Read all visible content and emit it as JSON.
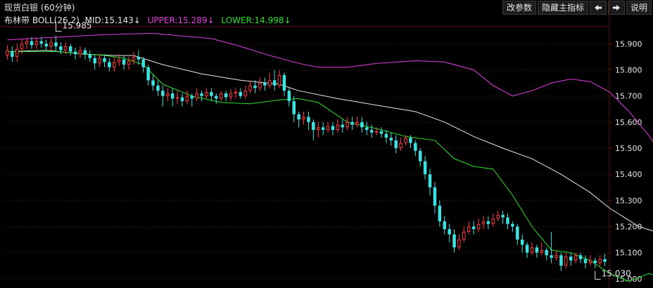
{
  "title": "现货白银 (60分钟)",
  "legend": {
    "indicator": "布林带",
    "params": "BOLL(26,2)",
    "mid": "MID:15.143↓",
    "upper": "UPPER:15.289↓",
    "lower": "LOWER:14.998↓"
  },
  "toolbar": {
    "modify_params": "改参数",
    "hide_indicator": "隐藏主指标",
    "prev_icon": "arrow-left-icon",
    "next_icon": "arrow-right-icon",
    "help": "说明"
  },
  "colors": {
    "up": "#ff3b3b",
    "down": "#3fe0e0",
    "mid": "#e6e6e6",
    "upper": "#e040e0",
    "lower": "#28e028",
    "grid": "#5a1010"
  },
  "chart_data": {
    "type": "candlestick",
    "ylim": [
      14.97,
      15.96
    ],
    "yticks": [
      "15.900",
      "15.800",
      "15.700",
      "15.600",
      "15.500",
      "15.400",
      "15.300",
      "15.200",
      "15.100",
      "15.000"
    ],
    "annotations": [
      {
        "text": "15.985",
        "index": 10,
        "value": 15.985
      },
      {
        "text": "15.030",
        "index": 121,
        "value": 15.03
      }
    ],
    "candles": [
      [
        15.855,
        15.875,
        15.895,
        15.84
      ],
      [
        15.87,
        15.85,
        15.89,
        15.83
      ],
      [
        15.85,
        15.88,
        15.9,
        15.83
      ],
      [
        15.88,
        15.9,
        15.92,
        15.86
      ],
      [
        15.9,
        15.91,
        15.925,
        15.88
      ],
      [
        15.91,
        15.895,
        15.925,
        15.88
      ],
      [
        15.895,
        15.91,
        15.92,
        15.88
      ],
      [
        15.91,
        15.9,
        15.925,
        15.885
      ],
      [
        15.9,
        15.89,
        15.915,
        15.875
      ],
      [
        15.89,
        15.905,
        15.92,
        15.875
      ],
      [
        15.905,
        15.89,
        15.93,
        15.87
      ],
      [
        15.89,
        15.875,
        15.905,
        15.86
      ],
      [
        15.875,
        15.89,
        15.905,
        15.86
      ],
      [
        15.89,
        15.87,
        15.9,
        15.855
      ],
      [
        15.87,
        15.86,
        15.885,
        15.84
      ],
      [
        15.86,
        15.875,
        15.89,
        15.845
      ],
      [
        15.875,
        15.86,
        15.885,
        15.84
      ],
      [
        15.86,
        15.845,
        15.875,
        15.83
      ],
      [
        15.845,
        15.825,
        15.86,
        15.8
      ],
      [
        15.825,
        15.845,
        15.86,
        15.81
      ],
      [
        15.845,
        15.83,
        15.86,
        15.81
      ],
      [
        15.83,
        15.81,
        15.845,
        15.795
      ],
      [
        15.81,
        15.83,
        15.85,
        15.795
      ],
      [
        15.83,
        15.84,
        15.86,
        15.815
      ],
      [
        15.84,
        15.82,
        15.855,
        15.8
      ],
      [
        15.82,
        15.835,
        15.85,
        15.8
      ],
      [
        15.835,
        15.85,
        15.87,
        15.82
      ],
      [
        15.85,
        15.84,
        15.875,
        15.82
      ],
      [
        15.84,
        15.81,
        15.85,
        15.79
      ],
      [
        15.81,
        15.76,
        15.82,
        15.74
      ],
      [
        15.76,
        15.74,
        15.78,
        15.72
      ],
      [
        15.74,
        15.72,
        15.76,
        15.7
      ],
      [
        15.72,
        15.7,
        15.74,
        15.66
      ],
      [
        15.7,
        15.71,
        15.73,
        15.68
      ],
      [
        15.71,
        15.69,
        15.73,
        15.66
      ],
      [
        15.69,
        15.695,
        15.72,
        15.67
      ],
      [
        15.695,
        15.68,
        15.71,
        15.66
      ],
      [
        15.68,
        15.7,
        15.72,
        15.67
      ],
      [
        15.7,
        15.69,
        15.71,
        15.66
      ],
      [
        15.69,
        15.71,
        15.73,
        15.68
      ],
      [
        15.71,
        15.7,
        15.72,
        15.68
      ],
      [
        15.7,
        15.715,
        15.73,
        15.69
      ],
      [
        15.715,
        15.7,
        15.73,
        15.68
      ],
      [
        15.7,
        15.69,
        15.71,
        15.67
      ],
      [
        15.69,
        15.71,
        15.72,
        15.68
      ],
      [
        15.71,
        15.695,
        15.72,
        15.68
      ],
      [
        15.695,
        15.71,
        15.725,
        15.68
      ],
      [
        15.71,
        15.715,
        15.73,
        15.69
      ],
      [
        15.715,
        15.7,
        15.73,
        15.69
      ],
      [
        15.7,
        15.72,
        15.74,
        15.69
      ],
      [
        15.72,
        15.74,
        15.76,
        15.71
      ],
      [
        15.74,
        15.73,
        15.76,
        15.71
      ],
      [
        15.73,
        15.75,
        15.77,
        15.72
      ],
      [
        15.75,
        15.74,
        15.77,
        15.72
      ],
      [
        15.74,
        15.76,
        15.79,
        15.73
      ],
      [
        15.76,
        15.74,
        15.8,
        15.72
      ],
      [
        15.74,
        15.78,
        15.8,
        15.73
      ],
      [
        15.78,
        15.72,
        15.79,
        15.7
      ],
      [
        15.72,
        15.68,
        15.73,
        15.66
      ],
      [
        15.68,
        15.63,
        15.7,
        15.6
      ],
      [
        15.63,
        15.61,
        15.64,
        15.58
      ],
      [
        15.61,
        15.62,
        15.64,
        15.59
      ],
      [
        15.62,
        15.6,
        15.64,
        15.57
      ],
      [
        15.6,
        15.57,
        15.61,
        15.53
      ],
      [
        15.57,
        15.58,
        15.6,
        15.54
      ],
      [
        15.58,
        15.57,
        15.6,
        15.55
      ],
      [
        15.57,
        15.585,
        15.6,
        15.56
      ],
      [
        15.585,
        15.57,
        15.6,
        15.55
      ],
      [
        15.57,
        15.59,
        15.61,
        15.56
      ],
      [
        15.59,
        15.58,
        15.61,
        15.56
      ],
      [
        15.58,
        15.6,
        15.62,
        15.57
      ],
      [
        15.6,
        15.59,
        15.62,
        15.57
      ],
      [
        15.59,
        15.6,
        15.62,
        15.58
      ],
      [
        15.6,
        15.58,
        15.62,
        15.56
      ],
      [
        15.58,
        15.57,
        15.6,
        15.55
      ],
      [
        15.57,
        15.56,
        15.59,
        15.54
      ],
      [
        15.56,
        15.565,
        15.58,
        15.55
      ],
      [
        15.565,
        15.555,
        15.58,
        15.54
      ],
      [
        15.555,
        15.54,
        15.57,
        15.52
      ],
      [
        15.54,
        15.53,
        15.56,
        15.51
      ],
      [
        15.53,
        15.5,
        15.55,
        15.48
      ],
      [
        15.5,
        15.52,
        15.54,
        15.49
      ],
      [
        15.52,
        15.54,
        15.55,
        15.51
      ],
      [
        15.54,
        15.52,
        15.55,
        15.5
      ],
      [
        15.52,
        15.49,
        15.53,
        15.47
      ],
      [
        15.49,
        15.45,
        15.5,
        15.43
      ],
      [
        15.45,
        15.4,
        15.47,
        15.38
      ],
      [
        15.4,
        15.35,
        15.42,
        15.32
      ],
      [
        15.35,
        15.28,
        15.37,
        15.25
      ],
      [
        15.28,
        15.22,
        15.3,
        15.2
      ],
      [
        15.22,
        15.19,
        15.24,
        15.17
      ],
      [
        15.19,
        15.17,
        15.21,
        15.14
      ],
      [
        15.17,
        15.12,
        15.19,
        15.1
      ],
      [
        15.12,
        15.15,
        15.17,
        15.11
      ],
      [
        15.15,
        15.18,
        15.2,
        15.14
      ],
      [
        15.18,
        15.2,
        15.22,
        15.17
      ],
      [
        15.2,
        15.19,
        15.22,
        15.17
      ],
      [
        15.19,
        15.21,
        15.23,
        15.18
      ],
      [
        15.21,
        15.22,
        15.24,
        15.19
      ],
      [
        15.22,
        15.21,
        15.24,
        15.19
      ],
      [
        15.21,
        15.23,
        15.25,
        15.2
      ],
      [
        15.23,
        15.245,
        15.26,
        15.22
      ],
      [
        15.245,
        15.235,
        15.26,
        15.21
      ],
      [
        15.235,
        15.21,
        15.25,
        15.19
      ],
      [
        15.21,
        15.2,
        15.22,
        15.18
      ],
      [
        15.2,
        15.15,
        15.21,
        15.13
      ],
      [
        15.15,
        15.13,
        15.17,
        15.1
      ],
      [
        15.13,
        15.1,
        15.14,
        15.08
      ],
      [
        15.1,
        15.12,
        15.14,
        15.09
      ],
      [
        15.12,
        15.1,
        15.13,
        15.08
      ],
      [
        15.1,
        15.11,
        15.14,
        15.09
      ],
      [
        15.11,
        15.09,
        15.12,
        15.07
      ],
      [
        15.09,
        15.08,
        15.18,
        15.06
      ],
      [
        15.08,
        15.09,
        15.11,
        15.07
      ],
      [
        15.09,
        15.05,
        15.1,
        15.03
      ],
      [
        15.05,
        15.085,
        15.1,
        15.04
      ],
      [
        15.085,
        15.07,
        15.1,
        15.05
      ],
      [
        15.07,
        15.09,
        15.1,
        15.06
      ],
      [
        15.09,
        15.075,
        15.1,
        15.06
      ],
      [
        15.075,
        15.06,
        15.09,
        15.04
      ],
      [
        15.06,
        15.07,
        15.09,
        15.05
      ],
      [
        15.07,
        15.06,
        15.08,
        15.04
      ],
      [
        15.06,
        15.075,
        15.09,
        15.05
      ],
      [
        15.075,
        15.065,
        15.095,
        15.05
      ]
    ],
    "mid": [
      [
        0,
        15.87
      ],
      [
        8,
        15.875
      ],
      [
        16,
        15.86
      ],
      [
        22,
        15.855
      ],
      [
        26,
        15.855
      ],
      [
        32,
        15.82
      ],
      [
        40,
        15.785
      ],
      [
        48,
        15.76
      ],
      [
        56,
        15.745
      ],
      [
        60,
        15.72
      ],
      [
        68,
        15.69
      ],
      [
        76,
        15.665
      ],
      [
        84,
        15.64
      ],
      [
        90,
        15.6
      ],
      [
        96,
        15.545
      ],
      [
        102,
        15.5
      ],
      [
        108,
        15.46
      ],
      [
        114,
        15.4
      ],
      [
        120,
        15.33
      ],
      [
        124,
        15.27
      ],
      [
        130,
        15.2
      ],
      [
        136,
        15.165
      ],
      [
        141,
        15.145
      ],
      [
        146,
        15.135
      ]
    ],
    "upper": [
      [
        0,
        15.915
      ],
      [
        10,
        15.925
      ],
      [
        20,
        15.935
      ],
      [
        30,
        15.94
      ],
      [
        36,
        15.93
      ],
      [
        42,
        15.92
      ],
      [
        48,
        15.89
      ],
      [
        54,
        15.855
      ],
      [
        60,
        15.825
      ],
      [
        64,
        15.81
      ],
      [
        70,
        15.81
      ],
      [
        76,
        15.825
      ],
      [
        84,
        15.835
      ],
      [
        90,
        15.83
      ],
      [
        96,
        15.8
      ],
      [
        100,
        15.74
      ],
      [
        104,
        15.7
      ],
      [
        108,
        15.72
      ],
      [
        112,
        15.75
      ],
      [
        116,
        15.765
      ],
      [
        120,
        15.755
      ],
      [
        124,
        15.715
      ],
      [
        128,
        15.64
      ],
      [
        132,
        15.55
      ],
      [
        136,
        15.44
      ],
      [
        138,
        15.36
      ],
      [
        140,
        15.3
      ],
      [
        143,
        15.285
      ],
      [
        146,
        15.28
      ]
    ],
    "lower": [
      [
        0,
        15.87
      ],
      [
        10,
        15.87
      ],
      [
        20,
        15.855
      ],
      [
        24,
        15.845
      ],
      [
        28,
        15.82
      ],
      [
        32,
        15.745
      ],
      [
        38,
        15.7
      ],
      [
        44,
        15.675
      ],
      [
        50,
        15.67
      ],
      [
        56,
        15.685
      ],
      [
        60,
        15.69
      ],
      [
        64,
        15.675
      ],
      [
        70,
        15.6
      ],
      [
        76,
        15.575
      ],
      [
        82,
        15.545
      ],
      [
        88,
        15.53
      ],
      [
        92,
        15.46
      ],
      [
        96,
        15.43
      ],
      [
        100,
        15.42
      ],
      [
        104,
        15.32
      ],
      [
        108,
        15.2
      ],
      [
        112,
        15.11
      ],
      [
        116,
        15.1
      ],
      [
        120,
        15.07
      ],
      [
        124,
        15.02
      ],
      [
        128,
        14.99
      ],
      [
        132,
        15.02
      ],
      [
        136,
        15.0
      ],
      [
        140,
        14.99
      ],
      [
        146,
        14.985
      ]
    ]
  }
}
